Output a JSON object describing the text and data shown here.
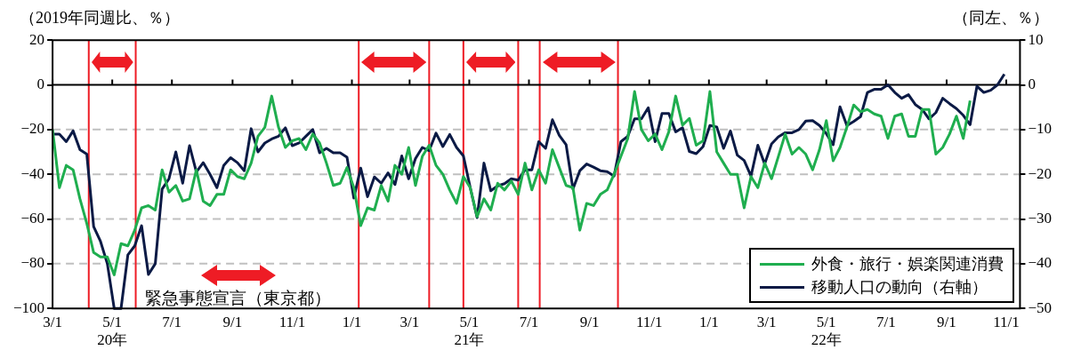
{
  "chart_data": {
    "type": "line",
    "ylabel": "（2019年同週比、％）",
    "y2label": "（同左、％）",
    "x": [
      "2020-03-01",
      "2020-03-08",
      "2020-03-15",
      "2020-03-22",
      "2020-03-29",
      "2020-04-05",
      "2020-04-12",
      "2020-04-19",
      "2020-04-26",
      "2020-05-03",
      "2020-05-10",
      "2020-05-17",
      "2020-05-24",
      "2020-05-31",
      "2020-06-07",
      "2020-06-14",
      "2020-06-21",
      "2020-06-28",
      "2020-07-05",
      "2020-07-12",
      "2020-07-19",
      "2020-07-26",
      "2020-08-02",
      "2020-08-09",
      "2020-08-16",
      "2020-08-23",
      "2020-08-30",
      "2020-09-06",
      "2020-09-13",
      "2020-09-20",
      "2020-09-27",
      "2020-10-04",
      "2020-10-11",
      "2020-10-18",
      "2020-10-25",
      "2020-11-01",
      "2020-11-08",
      "2020-11-15",
      "2020-11-22",
      "2020-11-29",
      "2020-12-06",
      "2020-12-13",
      "2020-12-20",
      "2020-12-27",
      "2021-01-03",
      "2021-01-10",
      "2021-01-17",
      "2021-01-24",
      "2021-01-31",
      "2021-02-07",
      "2021-02-14",
      "2021-02-21",
      "2021-02-28",
      "2021-03-07",
      "2021-03-14",
      "2021-03-21",
      "2021-03-28",
      "2021-04-04",
      "2021-04-11",
      "2021-04-18",
      "2021-04-25",
      "2021-05-02",
      "2021-05-09",
      "2021-05-16",
      "2021-05-23",
      "2021-05-30",
      "2021-06-06",
      "2021-06-13",
      "2021-06-20",
      "2021-06-27",
      "2021-07-04",
      "2021-07-11",
      "2021-07-18",
      "2021-07-25",
      "2021-08-01",
      "2021-08-08",
      "2021-08-15",
      "2021-08-22",
      "2021-08-29",
      "2021-09-05",
      "2021-09-12",
      "2021-09-19",
      "2021-09-26",
      "2021-10-03",
      "2021-10-10",
      "2021-10-17",
      "2021-10-24",
      "2021-10-31",
      "2021-11-07",
      "2021-11-14",
      "2021-11-21",
      "2021-11-28",
      "2021-12-05",
      "2021-12-12",
      "2021-12-19",
      "2021-12-26",
      "2022-01-02",
      "2022-01-09",
      "2022-01-16",
      "2022-01-23",
      "2022-01-30",
      "2022-02-06",
      "2022-02-13",
      "2022-02-20",
      "2022-02-27",
      "2022-03-06",
      "2022-03-13",
      "2022-03-20",
      "2022-03-27",
      "2022-04-03",
      "2022-04-10",
      "2022-04-17",
      "2022-04-24",
      "2022-05-01",
      "2022-05-08",
      "2022-05-15",
      "2022-05-22",
      "2022-05-29",
      "2022-06-05",
      "2022-06-12",
      "2022-06-19",
      "2022-06-26",
      "2022-07-03",
      "2022-07-10",
      "2022-07-17",
      "2022-07-24",
      "2022-07-31",
      "2022-08-07",
      "2022-08-14",
      "2022-08-21",
      "2022-08-28",
      "2022-09-04",
      "2022-09-11",
      "2022-09-18",
      "2022-09-25",
      "2022-10-02",
      "2022-10-09",
      "2022-10-16",
      "2022-10-23",
      "2022-10-30"
    ],
    "series": [
      {
        "name": "外食・旅行・娯楽関連消費",
        "color": "#1fae4f",
        "values": [
          -20,
          -46,
          -36,
          -38,
          -51,
          -62,
          -75,
          -77,
          -77,
          -85,
          -71,
          -72,
          -65,
          -55,
          -54,
          -56,
          -38,
          -48,
          -45,
          -52,
          -51,
          -38,
          -52,
          -54,
          -49,
          -49,
          -38,
          -41,
          -42,
          -35,
          -23,
          -19,
          -5,
          -19,
          -28,
          -25,
          -24,
          -29,
          -22,
          -26,
          -35,
          -45,
          -44,
          -37,
          -46,
          -63,
          -55,
          -56,
          -45,
          -52,
          -36,
          -40,
          -28,
          -45,
          -32,
          -27,
          -36,
          -40,
          -47,
          -53,
          -41,
          -46,
          -59,
          -51,
          -56,
          -44,
          -47,
          -43,
          -49,
          -35,
          -47,
          -38,
          -44,
          -29,
          -37,
          -45,
          -46,
          -65,
          -53,
          -54,
          -49,
          -47,
          -40,
          -32,
          -24,
          -3,
          -20,
          -25,
          -22,
          -29,
          -21,
          -5,
          -18,
          -15,
          -27,
          -25,
          -3,
          -30,
          -35,
          -40,
          -40,
          -55,
          -41,
          -46,
          -35,
          -42,
          -32,
          -22,
          -31,
          -28,
          -31,
          -38,
          -29,
          -16,
          -34,
          -28,
          -19,
          -9,
          -12,
          -11,
          -13,
          -14,
          -24,
          -14,
          -13,
          -23,
          -23,
          -11,
          -11,
          -31,
          -28,
          -22,
          -14,
          -24,
          -7,
          null,
          null,
          null,
          null,
          null
        ]
      },
      {
        "name": "移動人口の動向（右軸）",
        "color": "#0b1a45",
        "axis": "y2",
        "values": [
          -11,
          -11,
          -12.7,
          -10.3,
          -14.5,
          -15.5,
          -31.7,
          -35,
          -40,
          -50,
          -50,
          -38,
          -36,
          -31.5,
          -42.4,
          -40,
          -23.3,
          -21,
          -15,
          -22,
          -13.6,
          -19.5,
          -17.4,
          -20,
          -23,
          -18,
          -16.3,
          -17.4,
          -19.2,
          -9.8,
          -15,
          -13,
          -12.1,
          -11.5,
          -9.6,
          -13.6,
          -13,
          -11.5,
          -10,
          -15.2,
          -14.2,
          -15.2,
          -15.2,
          -16.2,
          -25.3,
          -18.6,
          -25,
          -20.6,
          -22,
          -19.7,
          -22.3,
          -15.9,
          -21,
          -16.5,
          -14,
          -14.7,
          -10.8,
          -13.8,
          -11.1,
          -14,
          -15.9,
          -23,
          -29.7,
          -17.5,
          -23.7,
          -22.6,
          -22.1,
          -21,
          -21.3,
          -19,
          -19,
          -12.7,
          -14.2,
          -7.8,
          -11.3,
          -13.4,
          -23.3,
          -19.2,
          -17.7,
          -18.4,
          -19.2,
          -19.4,
          -20.4,
          -12.7,
          -11.5,
          -7.6,
          -7.6,
          -5.1,
          -12.7,
          -6.4,
          -6.4,
          -10.5,
          -9.6,
          -14.9,
          -15.4,
          -13.8,
          -9.1,
          -9.4,
          -14.2,
          -10.3,
          -15.7,
          -16.9,
          -20.4,
          -13.5,
          -17.7,
          -13.2,
          -11.6,
          -10.7,
          -10.7,
          -10,
          -8.1,
          -8,
          -9.1,
          -10.9,
          -13.4,
          -4.9,
          -9.1,
          -8.2,
          -7.1,
          -1.7,
          -1,
          -1,
          0,
          -1.7,
          -3,
          -2.2,
          -4.4,
          -5.5,
          -7.6,
          -6.2,
          -3,
          -4.2,
          -5.3,
          -6.8,
          -8.9,
          -0.3,
          -1.7,
          -1.2,
          0,
          2.4
        ]
      }
    ],
    "xlim": [
      "2020-03-01",
      "2022-11-15"
    ],
    "xticks": [
      {
        "value": "2020-03-01",
        "label": "3/1"
      },
      {
        "value": "2020-05-01",
        "label": "5/1\n20年"
      },
      {
        "value": "2020-07-01",
        "label": "7/1"
      },
      {
        "value": "2020-09-01",
        "label": "9/1"
      },
      {
        "value": "2020-11-01",
        "label": "11/1"
      },
      {
        "value": "2021-01-01",
        "label": "1/1"
      },
      {
        "value": "2021-03-01",
        "label": "3/1"
      },
      {
        "value": "2021-05-01",
        "label": "5/1\n21年"
      },
      {
        "value": "2021-07-01",
        "label": "7/1"
      },
      {
        "value": "2021-09-01",
        "label": "9/1"
      },
      {
        "value": "2021-11-01",
        "label": "11/1"
      },
      {
        "value": "2022-01-01",
        "label": "1/1"
      },
      {
        "value": "2022-03-01",
        "label": "3/1"
      },
      {
        "value": "2022-05-01",
        "label": "5/1\n22年"
      },
      {
        "value": "2022-07-01",
        "label": "7/1"
      },
      {
        "value": "2022-09-01",
        "label": "9/1"
      },
      {
        "value": "2022-11-01",
        "label": "11/1"
      }
    ],
    "ylim": [
      -100,
      20
    ],
    "yticks": [
      -100,
      -80,
      -60,
      -40,
      -20,
      0,
      20
    ],
    "y2lim": [
      -50,
      10
    ],
    "y2ticks": [
      -50,
      -40,
      -30,
      -20,
      -10,
      0,
      10
    ],
    "ref_lines": [
      {
        "axis": "x",
        "value": "2020-04-07",
        "color": "#ee1c25"
      },
      {
        "axis": "x",
        "value": "2020-05-25",
        "color": "#ee1c25"
      },
      {
        "axis": "x",
        "value": "2021-01-08",
        "color": "#ee1c25"
      },
      {
        "axis": "x",
        "value": "2021-03-21",
        "color": "#ee1c25"
      },
      {
        "axis": "x",
        "value": "2021-04-25",
        "color": "#ee1c25"
      },
      {
        "axis": "x",
        "value": "2021-06-20",
        "color": "#ee1c25"
      },
      {
        "axis": "x",
        "value": "2021-07-12",
        "color": "#ee1c25"
      },
      {
        "axis": "x",
        "value": "2021-09-30",
        "color": "#ee1c25"
      }
    ],
    "annotations": [
      "緊急事態宣言（東京都）"
    ],
    "grid": "y",
    "legend": "bottom right",
    "marker": "none",
    "line_style": "solid"
  }
}
